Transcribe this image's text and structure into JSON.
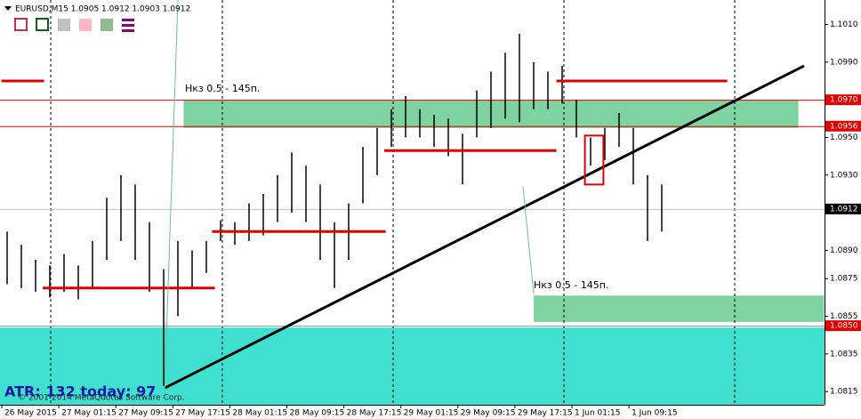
{
  "chart_data": {
    "type": "ohlc",
    "title": "EURUSD,M15  1.0905 1.0912 1.0903 1.0912",
    "annotations": [
      "Нкз 0.5 - 145п.",
      "Нкз 0.5 - 145п.",
      "ATR: 132  today: 97",
      "© 2001-2014 MetaQuotes Software Corp."
    ],
    "categories": [
      "26 May 2015",
      "27 May 01:15",
      "27 May 09:15",
      "27 May 17:15",
      "28 May 01:15",
      "28 May 09:15",
      "28 May 17:15",
      "29 May 01:15",
      "29 May 09:15",
      "29 May 17:15",
      "1 Jun 01:15",
      "1 Jun 09:15"
    ],
    "high": [
      1.09,
      1.0893,
      1.0885,
      1.0882,
      1.0888,
      1.0882,
      1.0895,
      1.0918,
      1.093,
      1.0925,
      1.0905,
      1.088,
      1.0895,
      1.089,
      1.0895,
      1.0906,
      1.0905,
      1.0915,
      1.092,
      1.093,
      1.0942,
      1.0935,
      1.0925,
      1.0905,
      1.0915,
      1.0945,
      1.0955,
      1.0965,
      1.0972,
      1.0965,
      1.0962,
      1.096,
      1.0952,
      1.0975,
      1.0985,
      1.0995,
      1.1005,
      1.099,
      1.0985,
      1.0988,
      1.097,
      1.095,
      1.0955,
      1.0963,
      1.0955,
      1.093,
      1.0925
    ],
    "low": [
      1.0872,
      1.087,
      1.0868,
      1.0865,
      1.0868,
      1.0864,
      1.087,
      1.0885,
      1.0895,
      1.0885,
      1.0868,
      1.0818,
      1.0855,
      1.087,
      1.0878,
      1.0895,
      1.0893,
      1.0895,
      1.0898,
      1.0905,
      1.091,
      1.0905,
      1.0885,
      1.087,
      1.0885,
      1.0915,
      1.093,
      1.0945,
      1.095,
      1.095,
      1.0945,
      1.094,
      1.0925,
      1.095,
      1.0955,
      1.096,
      1.0958,
      1.0965,
      1.0965,
      1.0968,
      1.095,
      1.0935,
      1.0938,
      1.0945,
      1.0925,
      1.0895,
      1.09
    ],
    "color": "#000000",
    "ylim": [
      1.0808,
      1.1023
    ],
    "yticks": [
      {
        "value": 1.101,
        "label": "1.1010"
      },
      {
        "value": 1.099,
        "label": "1.0990"
      },
      {
        "value": 1.097,
        "label": "1.0970",
        "bg": "#e00000"
      },
      {
        "value": 1.0956,
        "label": "1.0956",
        "bg": "#e00000"
      },
      {
        "value": 1.095,
        "label": "1.0950"
      },
      {
        "value": 1.093,
        "label": "1.0930"
      },
      {
        "value": 1.0912,
        "label": "1.0912",
        "bg": "#000000"
      },
      {
        "value": 1.089,
        "label": "1.0890"
      },
      {
        "value": 1.0875,
        "label": "1.0875"
      },
      {
        "value": 1.0855,
        "label": "1.0855"
      },
      {
        "value": 1.085,
        "label": "1.0850",
        "bg": "#e00000"
      },
      {
        "value": 1.0835,
        "label": "1.0835"
      },
      {
        "value": 1.0815,
        "label": "1.0815"
      }
    ],
    "hlines": [
      {
        "value": 1.097,
        "color": "#e00000"
      },
      {
        "value": 1.0956,
        "color": "#e00000"
      },
      {
        "value": 1.0912,
        "color": "#c0c0c0"
      },
      {
        "value": 1.085,
        "color": "#909090"
      }
    ],
    "levels": [
      {
        "value": 1.098,
        "start": -0.4,
        "end": 2.6
      },
      {
        "value": 1.087,
        "start": 2.5,
        "end": 14.6
      },
      {
        "value": 1.09,
        "start": 14.4,
        "end": 26.6
      },
      {
        "value": 1.0943,
        "start": 26.5,
        "end": 38.6
      },
      {
        "value": 1.098,
        "start": 38.6,
        "end": 50.6
      }
    ],
    "zones": [
      {
        "top": 1.097,
        "bottom": 1.0955,
        "start": 12.4,
        "end": 55.6,
        "color": "#7fd3a0"
      },
      {
        "top": 1.0866,
        "bottom": 1.0852,
        "start": 37,
        "end": 57.4,
        "color": "#7fd3a0"
      }
    ],
    "base_zone": {
      "top": 1.0849,
      "color": "#40e0d0"
    },
    "trendline": {
      "start": 11.1,
      "end": 56,
      "from": 1.0817,
      "to": 1.0988
    },
    "box": {
      "start": 40.6,
      "end": 41.9,
      "top": 1.0951,
      "bottom": 1.0925
    }
  }
}
